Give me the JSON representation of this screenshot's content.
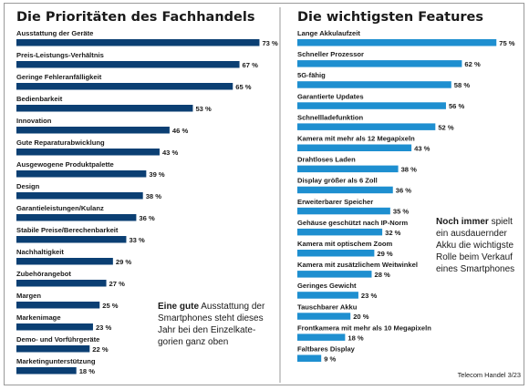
{
  "chart_data": [
    {
      "type": "bar",
      "orientation": "horizontal",
      "title": "Die Prioritäten des Fachhandels",
      "color": "#0b3f73",
      "unit": "%",
      "xlim": [
        0,
        100
      ],
      "categories": [
        "Ausstattung der Geräte",
        "Preis-Leistungs-Verhältnis",
        "Geringe Fehleranfälligkeit",
        "Bedienbarkeit",
        "Innovation",
        "Gute Reparaturabwicklung",
        "Ausgewogene Produktpalette",
        "Design",
        "Garantieleistungen/Kulanz",
        "Stabile Preise/Berechenbarkeit",
        "Nachhaltigkeit",
        "Zubehörangebot",
        "Margen",
        "Markenimage",
        "Demo- und Vorführgeräte",
        "Marketingunterstützung"
      ],
      "values": [
        73,
        67,
        65,
        53,
        46,
        43,
        39,
        38,
        36,
        33,
        29,
        27,
        25,
        23,
        22,
        18
      ]
    },
    {
      "type": "bar",
      "orientation": "horizontal",
      "title": "Die wichtigsten Features",
      "color": "#1e8fd0",
      "unit": "%",
      "xlim": [
        0,
        100
      ],
      "categories": [
        "Lange Akkulaufzeit",
        "Schneller Prozessor",
        "5G-fähig",
        "Garantierte Updates",
        "Schnellladefunktion",
        "Kamera mit mehr als 12 Megapixeln",
        "Drahtloses Laden",
        "Display größer als 6 Zoll",
        "Erweiterbarer Speicher",
        "Gehäuse geschützt nach IP-Norm",
        "Kamera mit optischem Zoom",
        "Kamera mit zusätzlichem Weitwinkel",
        "Geringes Gewicht",
        "Tauschbarer Akku",
        "Frontkamera mit mehr als 10 Megapixeln",
        "Faltbares Display"
      ],
      "values": [
        75,
        62,
        58,
        56,
        52,
        43,
        38,
        36,
        35,
        32,
        29,
        28,
        23,
        20,
        18,
        9
      ]
    }
  ],
  "notes": {
    "left_bold": "Eine gute",
    "left_rest": " Ausstattung der Smartphones steht dieses Jahr bei den Einzelkate-gorien ganz oben",
    "right_bold": "Noch immer",
    "right_rest": " spielt ein ausdauernder Akku die wichtigste Rolle beim Verkauf eines Smartphones"
  },
  "source": "Telecom Handel 3/23"
}
